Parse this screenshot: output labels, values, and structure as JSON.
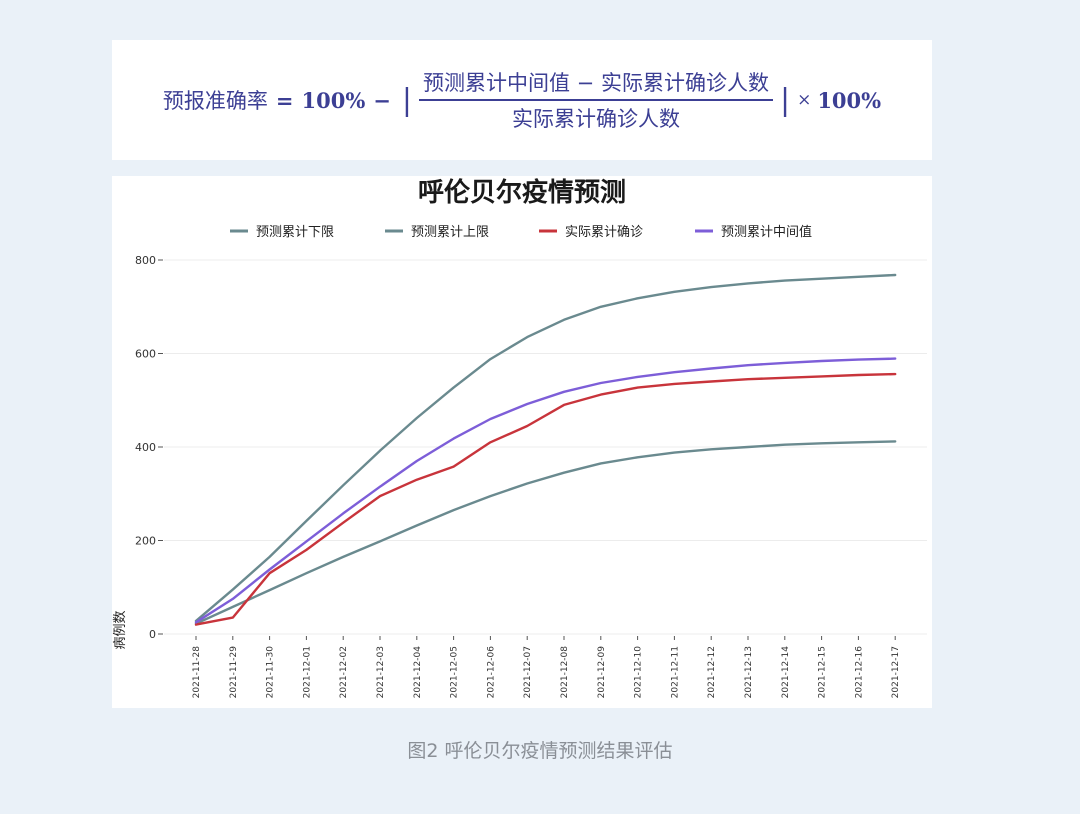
{
  "formula": {
    "lhs": "预报准确率",
    "eq": "=",
    "hundred": "100%",
    "minus": "−",
    "bar": "|",
    "numerator": "预测累计中间值 − 实际累计确诊人数",
    "denominator": "实际累计确诊人数",
    "times": "×",
    "hundred2": "100%"
  },
  "caption": "图2 呼伦贝尔疫情预测结果评估",
  "colors": {
    "lower": "#6a8a8f",
    "upper": "#6a8a8f",
    "actual": "#c8343b",
    "middle": "#7d5ed8",
    "formula": "#3c3f94"
  },
  "chart_data": {
    "type": "line",
    "title": "呼伦贝尔疫情预测",
    "ylabel": "病例数",
    "xlabel": "",
    "ylim": [
      0,
      800
    ],
    "yticks": [
      0,
      200,
      400,
      600,
      800
    ],
    "grid": true,
    "legend_position": "top",
    "x": [
      "2021-11-28",
      "2021-11-29",
      "2021-11-30",
      "2021-12-01",
      "2021-12-02",
      "2021-12-03",
      "2021-12-04",
      "2021-12-05",
      "2021-12-06",
      "2021-12-07",
      "2021-12-08",
      "2021-12-09",
      "2021-12-10",
      "2021-12-11",
      "2021-12-12",
      "2021-12-13",
      "2021-12-14",
      "2021-12-15",
      "2021-12-16",
      "2021-12-17"
    ],
    "series": [
      {
        "name": "预测累计下限",
        "color": "#6a8a8f",
        "values": [
          22,
          58,
          94,
          130,
          165,
          198,
          232,
          265,
          295,
          322,
          345,
          365,
          378,
          388,
          395,
          400,
          405,
          408,
          410,
          412
        ]
      },
      {
        "name": "预测累计上限",
        "color": "#6a8a8f",
        "values": [
          28,
          95,
          165,
          242,
          318,
          392,
          462,
          527,
          588,
          635,
          672,
          700,
          718,
          732,
          742,
          750,
          756,
          760,
          764,
          768
        ]
      },
      {
        "name": "实际累计确诊",
        "color": "#c8343b",
        "values": [
          20,
          35,
          130,
          180,
          238,
          295,
          330,
          358,
          410,
          445,
          490,
          512,
          527,
          535,
          540,
          545,
          548,
          551,
          554,
          556
        ]
      },
      {
        "name": "预测累计中间值",
        "color": "#7d5ed8",
        "values": [
          25,
          75,
          138,
          198,
          258,
          315,
          370,
          418,
          460,
          492,
          518,
          537,
          550,
          560,
          568,
          575,
          580,
          584,
          587,
          589
        ]
      }
    ]
  }
}
